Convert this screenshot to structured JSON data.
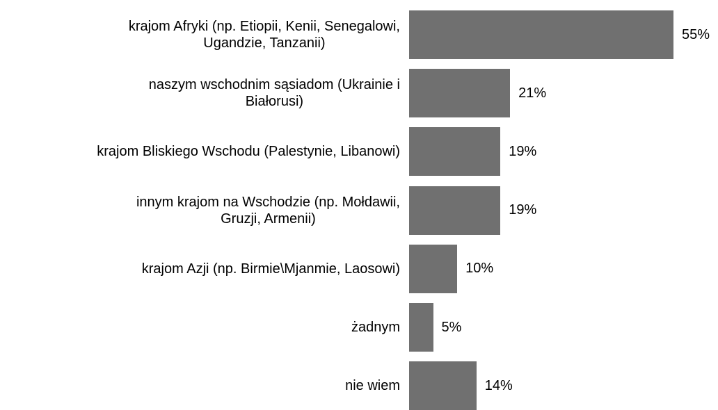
{
  "chart_data": {
    "type": "bar",
    "orientation": "horizontal",
    "categories": [
      "krajom Afryki (np. Etiopii, Kenii, Senegalowi,\nUgandzie, Tanzanii)",
      "naszym wschodnim sąsiadom (Ukrainie i\nBiałorusi)",
      "krajom Bliskiego Wschodu (Palestynie, Libanowi)",
      "innym krajom na Wschodzie (np. Mołdawii,\nGruzji, Armenii)",
      "krajom Azji (np. Birmie\\Mjanmie, Laosowi)",
      "żadnym",
      "nie wiem"
    ],
    "values": [
      55,
      21,
      19,
      19,
      10,
      5,
      14
    ],
    "value_labels": [
      "55%",
      "21%",
      "19%",
      "19%",
      "10%",
      "5%",
      "14%"
    ],
    "color": "#707070"
  }
}
